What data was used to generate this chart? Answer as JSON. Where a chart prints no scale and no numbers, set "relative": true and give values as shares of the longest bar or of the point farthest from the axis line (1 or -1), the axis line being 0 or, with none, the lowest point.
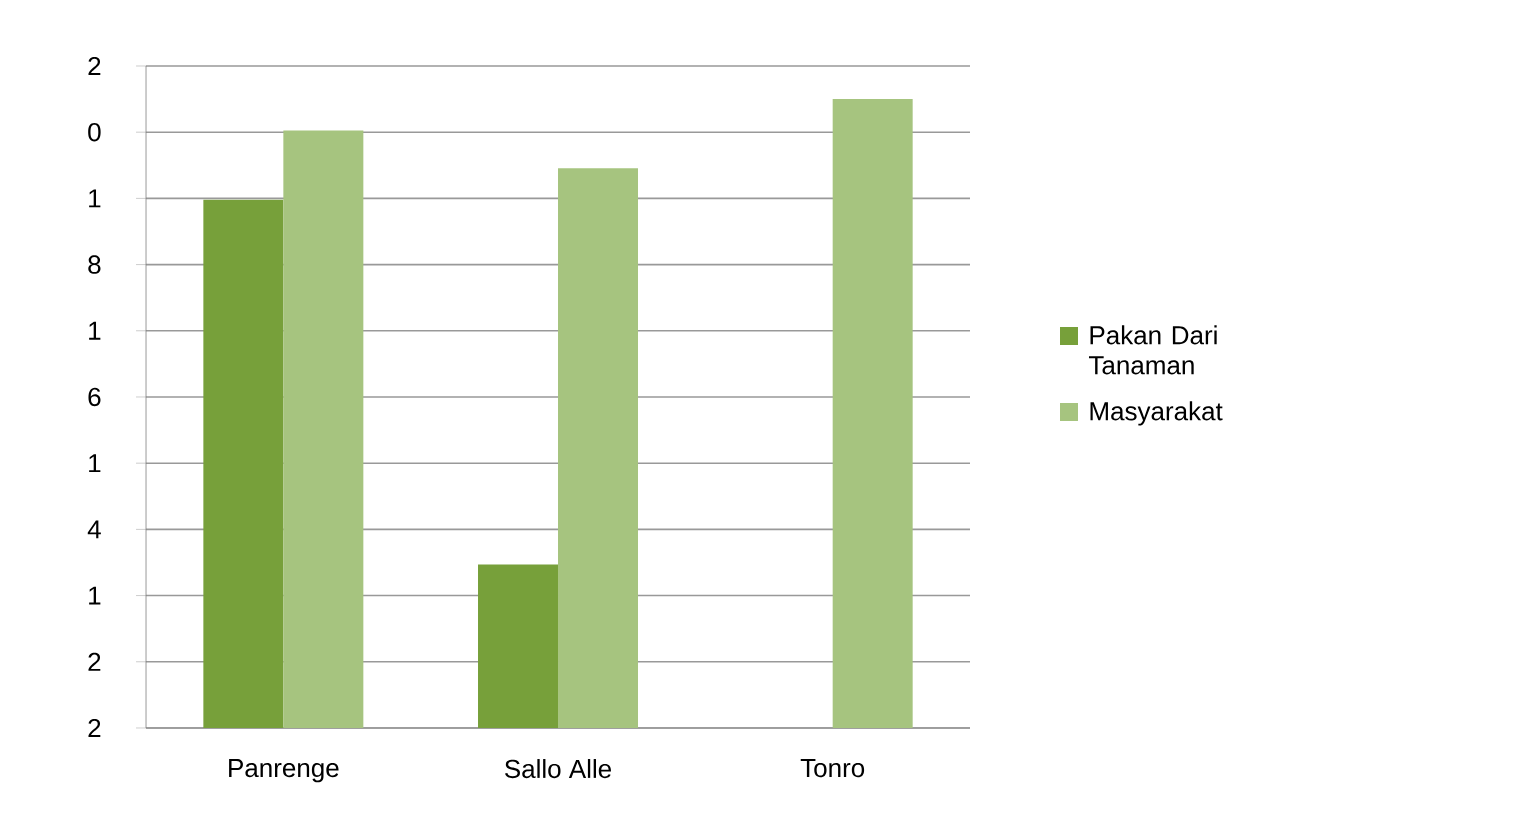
{
  "chart_data": {
    "type": "bar",
    "categories": [
      "Panrenge",
      "Sallo Alle",
      "Tonro"
    ],
    "series": [
      {
        "name": "Pakan Dari Tanaman",
        "color": "#77a03a",
        "values": [
          0.84,
          0.26,
          null
        ]
      },
      {
        "name": "Masyarakat",
        "color": "#a6c47f",
        "values": [
          0.95,
          0.89,
          1
        ]
      }
    ],
    "relative": true,
    "annotations": [
      "2",
      "0",
      "1",
      "8",
      "1",
      "6",
      "1",
      "4",
      "1",
      "2",
      "2"
    ],
    "grid": "y",
    "legend": "right"
  }
}
